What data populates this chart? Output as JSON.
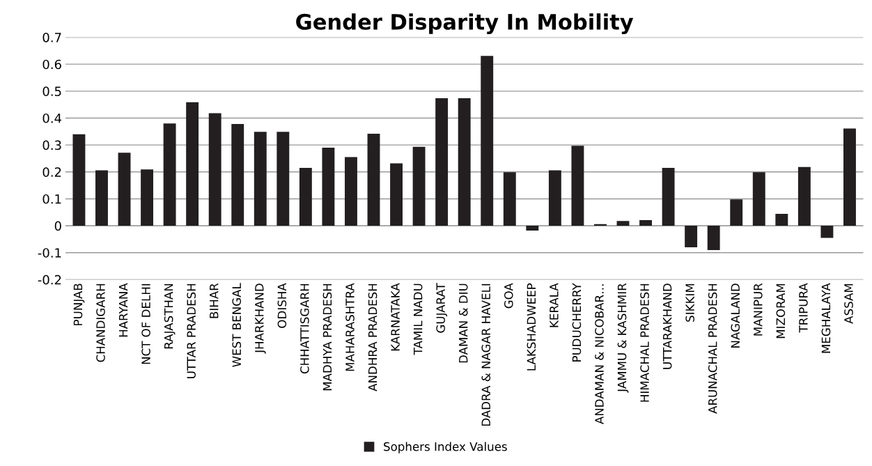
{
  "chart_data": {
    "type": "bar",
    "title": "Gender Disparity In Mobility",
    "categories": [
      "PUNJAB",
      "CHANDIGARH",
      "HARYANA",
      "NCT OF DELHI",
      "RAJASTHAN",
      "UTTAR PRADESH",
      "BIHAR",
      "WEST BENGAL",
      "JHARKHAND",
      "ODISHA",
      "CHHATTISGARH",
      "MADHYA PRADESH",
      "MAHARASHTRA",
      "ANDHRA PRADESH",
      "KARNATAKA",
      "TAMIL NADU",
      "GUJARAT",
      "DAMAN & DIU",
      "DADRA & NAGAR HAVELI",
      "GOA",
      "LAKSHADWEEP",
      "KERALA",
      "PUDUCHERRY",
      "ANDAMAN & NICOBAR…",
      "JAMMU & KASHMIR",
      "HIMACHAL PRADESH",
      "UTTARAKHAND",
      "SIKKIM",
      "ARUNACHAL PRADESH",
      "NAGALAND",
      "MANIPUR",
      "MIZORAM",
      "TRIPURA",
      "MEGHALAYA",
      "ASSAM"
    ],
    "series": [
      {
        "name": "Sophers Index Values",
        "color": "#231f20",
        "values": [
          0.34,
          0.206,
          0.271,
          0.209,
          0.38,
          0.459,
          0.418,
          0.378,
          0.349,
          0.349,
          0.215,
          0.29,
          0.255,
          0.342,
          0.232,
          0.293,
          0.474,
          0.474,
          0.631,
          0.199,
          -0.018,
          0.206,
          0.297,
          0.006,
          0.018,
          0.021,
          0.215,
          -0.08,
          -0.09,
          0.098,
          0.199,
          0.044,
          0.218,
          -0.045,
          0.361
        ]
      }
    ],
    "ylim": [
      -0.2,
      0.7
    ],
    "yticks": [
      -0.2,
      -0.1,
      0,
      0.1,
      0.2,
      0.3,
      0.4,
      0.5,
      0.6,
      0.7
    ],
    "grid": "y",
    "legend": "bottom"
  }
}
